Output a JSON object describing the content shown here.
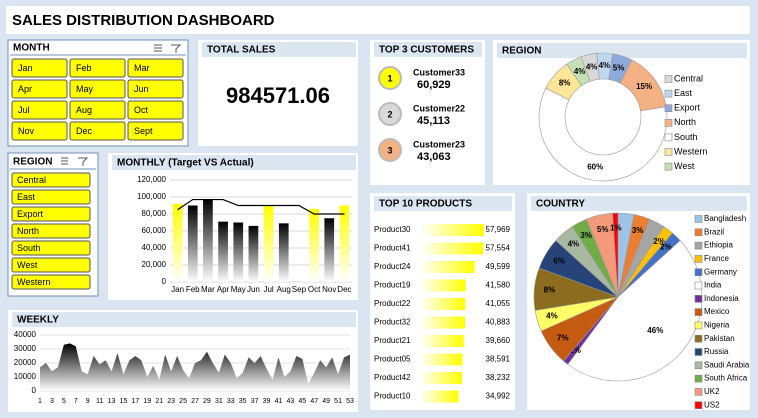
{
  "title": "SALES DISTRIBUTION DASHBOARD",
  "month_slicer": {
    "header": "MONTH",
    "items": [
      "Jan",
      "Feb",
      "Mar",
      "Apr",
      "May",
      "Jun",
      "Jul",
      "Aug",
      "Oct",
      "Nov",
      "Dec",
      "Sept"
    ]
  },
  "region_slicer": {
    "header": "REGION",
    "items": [
      "Central",
      "East",
      "Export",
      "North",
      "South",
      "West",
      "Western"
    ]
  },
  "total_sales": {
    "title": "TOTAL SALES",
    "value": 984571.06
  },
  "top_customers": {
    "title": "TOP 3 CUSTOMERS",
    "items": [
      {
        "rank": 1,
        "name": "Customer33",
        "value": "60,929",
        "color": "#ffff00"
      },
      {
        "rank": 2,
        "name": "Customer22",
        "value": "45,113",
        "color": "#d9d9d9"
      },
      {
        "rank": 3,
        "name": "Customer23",
        "value": "43,063",
        "color": "#f4b183"
      }
    ]
  },
  "chart_data": [
    {
      "type": "bar",
      "title": "MONTHLY (Target VS Actual)",
      "categories": [
        "Jan",
        "Feb",
        "Mar",
        "Apr",
        "May",
        "Jun",
        "Jul",
        "Aug",
        "Sep",
        "Oct",
        "Nov",
        "Dec"
      ],
      "series": [
        {
          "values": [
            92000,
            90000,
            97000,
            71000,
            70000,
            66000,
            90000,
            69000,
            0,
            86000,
            75000,
            90000
          ],
          "colors": [
            "#ffff00",
            "#000000",
            "#000000",
            "#000000",
            "#000000",
            "#000000",
            "#ffff00",
            "#000000",
            "#000000",
            "#ffff00",
            "#000000",
            "#ffff00"
          ]
        },
        {
          "type": "line",
          "values": [
            85000,
            97000,
            97000,
            97000,
            90000,
            90000,
            90000,
            90000,
            90000,
            80000,
            80000,
            80000
          ],
          "color": "#000000"
        }
      ],
      "ylim": [
        0,
        120000
      ],
      "yticks": [
        0,
        {
          "value": 20000,
          "label": "20,000"
        },
        {
          "value": 40000,
          "label": "40,000"
        },
        {
          "value": 60000,
          "label": "60,000"
        },
        {
          "value": 80000,
          "label": "80,000"
        },
        {
          "value": 100000,
          "label": "100,000"
        },
        {
          "value": 120000,
          "label": "120,000"
        }
      ]
    },
    {
      "type": "area",
      "title": "WEEKLY",
      "categories": [
        1,
        null,
        3,
        null,
        5,
        null,
        7,
        null,
        9,
        null,
        11,
        null,
        13,
        null,
        15,
        null,
        17,
        null,
        19,
        null,
        21,
        null,
        23,
        null,
        25,
        null,
        27,
        null,
        29,
        null,
        31,
        null,
        33,
        null,
        35,
        null,
        37,
        null,
        39,
        null,
        41,
        null,
        43,
        null,
        45,
        null,
        47,
        null,
        49,
        null,
        51,
        null,
        53
      ],
      "values": [
        17000,
        20000,
        14000,
        17000,
        33000,
        34000,
        32000,
        14000,
        12000,
        25000,
        19000,
        22000,
        14000,
        27000,
        12000,
        22000,
        25000,
        22000,
        10000,
        18000,
        8000,
        26000,
        14000,
        25000,
        15000,
        9000,
        20000,
        22000,
        28000,
        20000,
        13000,
        26000,
        20000,
        9000,
        13000,
        24000,
        20000,
        25000,
        16000,
        8000,
        24000,
        10000,
        14000,
        25000,
        23000,
        5000,
        13000,
        22000,
        17000,
        24000,
        12000,
        24000,
        26000
      ],
      "color": "#000000",
      "ylim": [
        0,
        40000
      ],
      "yticks": [
        0,
        10000,
        20000,
        30000,
        40000
      ]
    },
    {
      "type": "hbar",
      "title": "TOP 10 PRODUCTS",
      "categories": [
        "Product30",
        "Product41",
        "Product24",
        "Product19",
        "Product22",
        "Product32",
        "Product21",
        "Product05",
        "Product42",
        "Product10"
      ],
      "values": [
        57969,
        57554,
        49599,
        41580,
        41055,
        40883,
        39660,
        38591,
        38232,
        34992
      ],
      "value_labels": [
        "57,969",
        "57,554",
        "49,599",
        "41,580",
        "41,055",
        "40,883",
        "39,660",
        "38,591",
        "38,232",
        "34,992"
      ],
      "color": "#ffff00",
      "xlim": [
        0,
        60000
      ]
    },
    {
      "type": "donut",
      "title": "REGION",
      "categories": [
        "Central",
        "East",
        "Export",
        "North",
        "South",
        "Western",
        "West"
      ],
      "values": [
        4,
        4,
        5,
        15,
        60,
        8,
        4
      ],
      "value_labels": [
        "4%",
        "4%",
        "5%",
        "15%",
        "60%",
        "8%",
        "4%"
      ],
      "colors": [
        "#d9d9d9",
        "#bdd7ee",
        "#8faadc",
        "#f4b183",
        "#ffffff",
        "#ffe699",
        "#c5e0b4"
      ]
    },
    {
      "type": "pie",
      "title": "COUNTRY",
      "categories": [
        "Bangladesh",
        "Brazil",
        "Ethiopia",
        "France",
        "Germany",
        "India",
        "Indonesia",
        "Mexico",
        "Nigeria",
        "Pakistan",
        "Russia",
        "Saudi Arabia",
        "South Africa",
        "UK2",
        "US2"
      ],
      "values": [
        3,
        3,
        3,
        2,
        2,
        46,
        1,
        7,
        4,
        8,
        6,
        4,
        3,
        5,
        1
      ],
      "value_labels": [
        null,
        "3%",
        null,
        "2%",
        "2%",
        "46%",
        "1%",
        "7%",
        "4%",
        "8%",
        "6%",
        "4%",
        "3%",
        "5%",
        "1%"
      ],
      "colors": [
        "#9dc3e6",
        "#ed7d31",
        "#a5a5a5",
        "#ffc000",
        "#4472c4",
        "#ffffff",
        "#7030a0",
        "#c55a11",
        "#ffff66",
        "#8c6d1f",
        "#264478",
        "#a9b8a0",
        "#70ad47",
        "#f4997a",
        "#ff0000"
      ]
    }
  ]
}
